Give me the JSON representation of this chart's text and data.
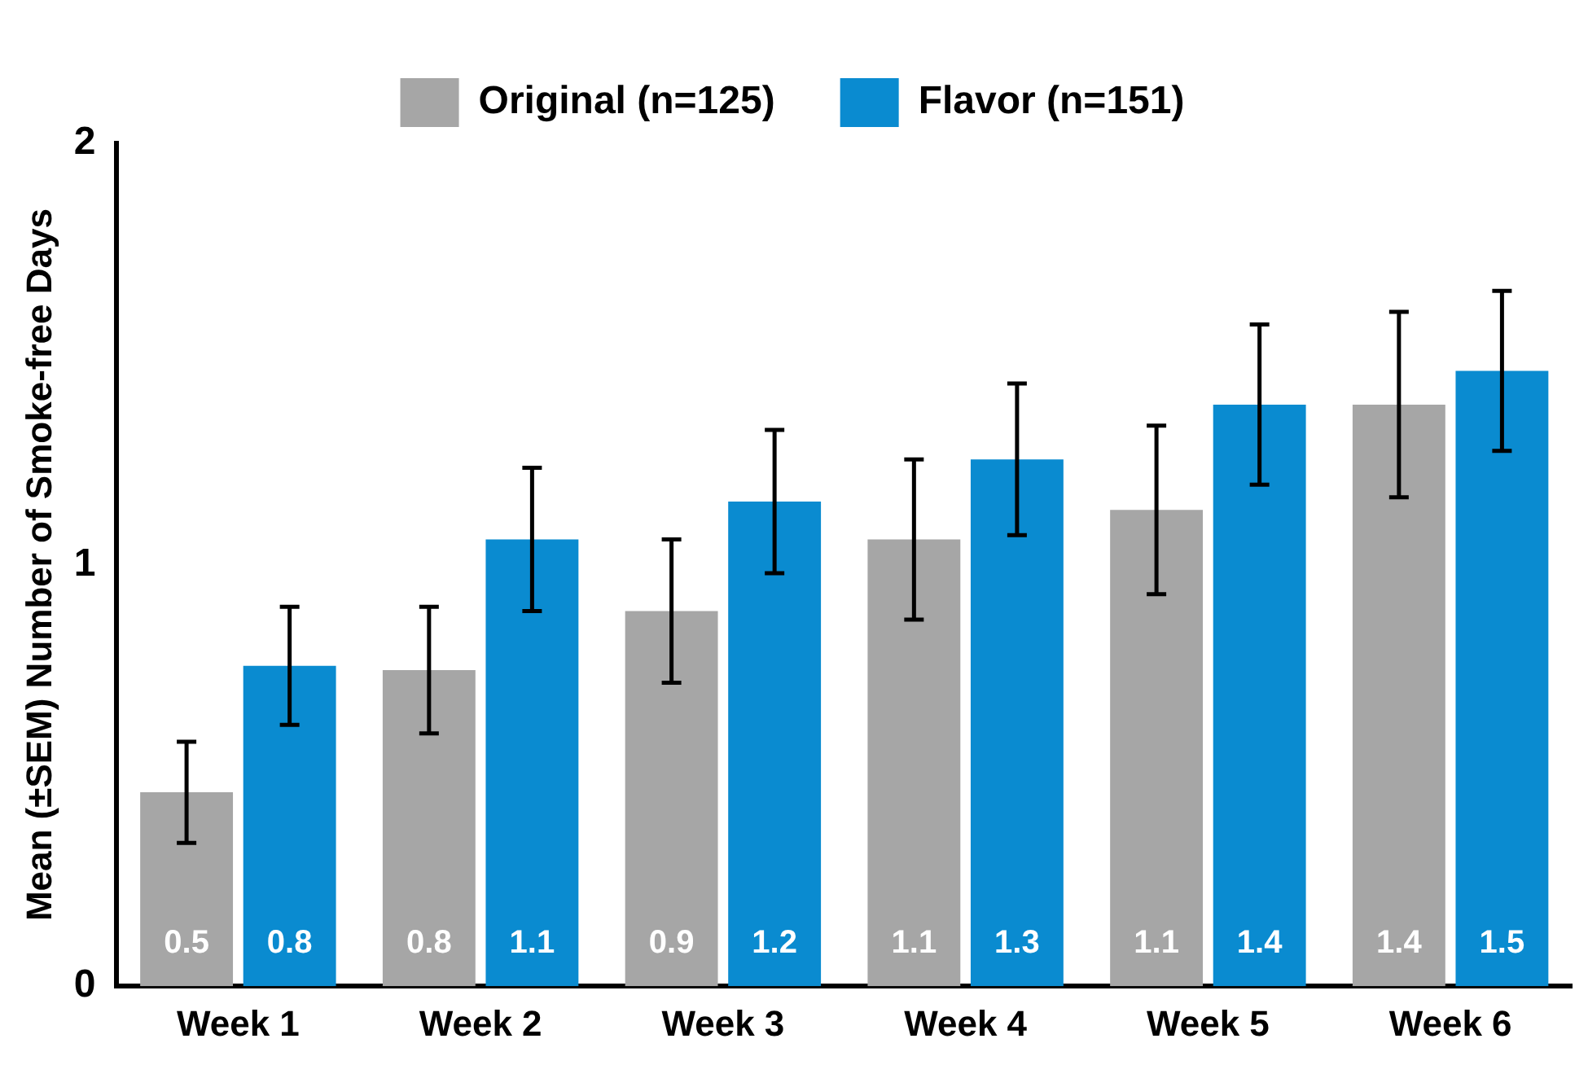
{
  "chart_data": {
    "type": "bar",
    "ylabel": "Mean (±SEM) Number of Smoke-free Days",
    "categories": [
      "Week 1",
      "Week 2",
      "Week 3",
      "Week 4",
      "Week 5",
      "Week 6"
    ],
    "series": [
      {
        "name": "Original (n=125)",
        "color": "#a6a6a6",
        "values": [
          0.46,
          0.75,
          0.89,
          1.06,
          1.13,
          1.38
        ],
        "errors": [
          0.12,
          0.15,
          0.17,
          0.19,
          0.2,
          0.22
        ],
        "value_labels": [
          "0.5",
          "0.8",
          "0.9",
          "1.1",
          "1.1",
          "1.4"
        ]
      },
      {
        "name": "Flavor (n=151)",
        "color": "#0a8bd0",
        "values": [
          0.76,
          1.06,
          1.15,
          1.25,
          1.38,
          1.46
        ],
        "errors": [
          0.14,
          0.17,
          0.17,
          0.18,
          0.19,
          0.19
        ],
        "value_labels": [
          "0.8",
          "1.1",
          "1.2",
          "1.3",
          "1.4",
          "1.5"
        ]
      }
    ],
    "ylim": [
      0,
      2
    ],
    "yticks": [
      0,
      1,
      2
    ],
    "legend": "top",
    "grid": false
  }
}
